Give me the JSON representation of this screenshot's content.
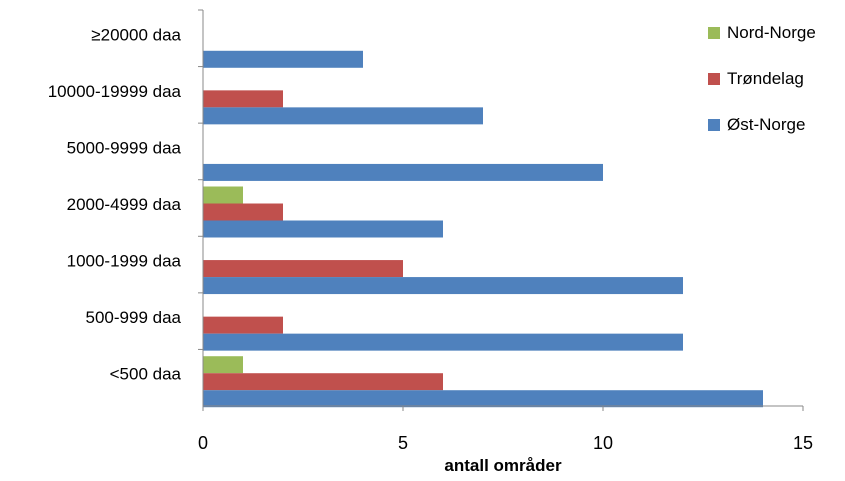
{
  "chart_data": {
    "type": "bar",
    "orientation": "horizontal",
    "categories": [
      "≥20000 daa",
      "10000-19999 daa",
      "5000-9999 daa",
      "2000-4999 daa",
      "1000-1999 daa",
      "500-999 daa",
      "<500 daa"
    ],
    "series": [
      {
        "name": "Nord-Norge",
        "color": "#9bbb59",
        "values": [
          0,
          0,
          0,
          1,
          0,
          0,
          1
        ]
      },
      {
        "name": "Trøndelag",
        "color": "#c0504d",
        "values": [
          0,
          2,
          0,
          2,
          5,
          2,
          6
        ]
      },
      {
        "name": "Øst-Norge",
        "color": "#4f81bd",
        "values": [
          4,
          7,
          10,
          6,
          12,
          12,
          14
        ]
      }
    ],
    "xlabel": "antall områder",
    "ylabel": "",
    "xlim": [
      0,
      15
    ],
    "xticks": [
      0,
      5,
      10,
      15
    ],
    "grid": false,
    "legend": "top-right"
  }
}
